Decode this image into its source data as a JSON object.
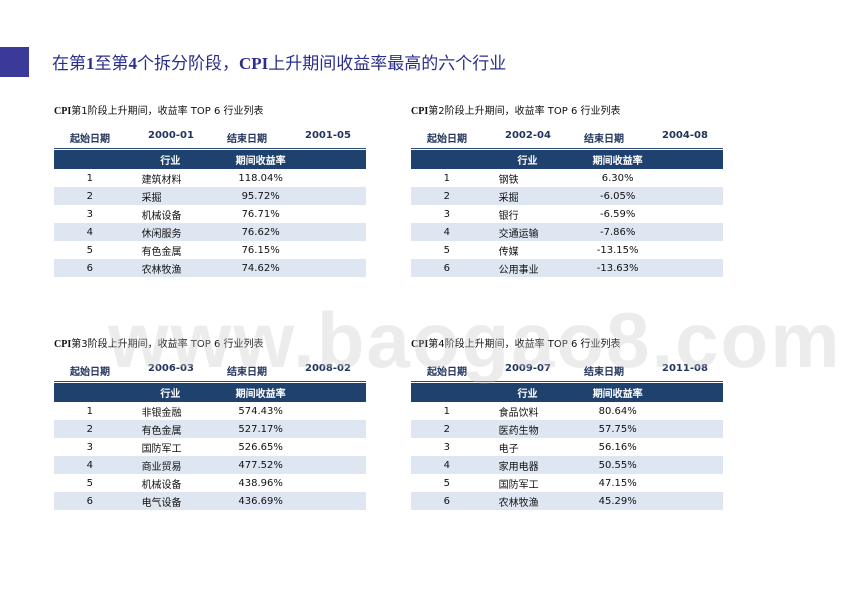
{
  "title": {
    "prefix": "在第",
    "num1": "1",
    "mid": "至第",
    "num2": "4",
    "mid2": "个拆分阶段，",
    "cpi": "CPI",
    "suffix": "上升期间收益率最高的六个行业"
  },
  "watermark": "www.baogao8.com",
  "panels": [
    {
      "title_cpi": "CPI",
      "title_rest": "第1阶段上升期间，收益率 TOP 6 行业列表",
      "start_label": "起始日期",
      "start_date": "2000-01",
      "end_label": "结束日期",
      "end_date": "2001-05",
      "headers": [
        "",
        "行业",
        "期间收益率",
        ""
      ],
      "rows": [
        {
          "rank": "1",
          "industry": "建筑材料",
          "return": "118.04%"
        },
        {
          "rank": "2",
          "industry": "采掘",
          "return": "95.72%"
        },
        {
          "rank": "3",
          "industry": "机械设备",
          "return": "76.71%"
        },
        {
          "rank": "4",
          "industry": "休闲服务",
          "return": "76.62%"
        },
        {
          "rank": "5",
          "industry": "有色金属",
          "return": "76.15%"
        },
        {
          "rank": "6",
          "industry": "农林牧渔",
          "return": "74.62%"
        }
      ]
    },
    {
      "title_cpi": "CPI",
      "title_rest": "第2阶段上升期间，收益率 TOP 6 行业列表",
      "start_label": "起始日期",
      "start_date": "2002-04",
      "end_label": "结束日期",
      "end_date": "2004-08",
      "headers": [
        "",
        "行业",
        "期间收益率",
        ""
      ],
      "rows": [
        {
          "rank": "1",
          "industry": "钢铁",
          "return": "6.30%"
        },
        {
          "rank": "2",
          "industry": "采掘",
          "return": "-6.05%"
        },
        {
          "rank": "3",
          "industry": "银行",
          "return": "-6.59%"
        },
        {
          "rank": "4",
          "industry": "交通运输",
          "return": "-7.86%"
        },
        {
          "rank": "5",
          "industry": "传媒",
          "return": "-13.15%"
        },
        {
          "rank": "6",
          "industry": "公用事业",
          "return": "-13.63%"
        }
      ]
    },
    {
      "title_cpi": "CPI",
      "title_rest": "第3阶段上升期间，收益率 TOP 6 行业列表",
      "start_label": "起始日期",
      "start_date": "2006-03",
      "end_label": "结束日期",
      "end_date": "2008-02",
      "headers": [
        "",
        "行业",
        "期间收益率",
        ""
      ],
      "rows": [
        {
          "rank": "1",
          "industry": "非银金融",
          "return": "574.43%"
        },
        {
          "rank": "2",
          "industry": "有色金属",
          "return": "527.17%"
        },
        {
          "rank": "3",
          "industry": "国防军工",
          "return": "526.65%"
        },
        {
          "rank": "4",
          "industry": "商业贸易",
          "return": "477.52%"
        },
        {
          "rank": "5",
          "industry": "机械设备",
          "return": "438.96%"
        },
        {
          "rank": "6",
          "industry": "电气设备",
          "return": "436.69%"
        }
      ]
    },
    {
      "title_cpi": "CPI",
      "title_rest": "第4阶段上升期间，收益率 TOP 6 行业列表",
      "start_label": "起始日期",
      "start_date": "2009-07",
      "end_label": "结束日期",
      "end_date": "2011-08",
      "headers": [
        "",
        "行业",
        "期间收益率",
        ""
      ],
      "rows": [
        {
          "rank": "1",
          "industry": "食品饮料",
          "return": "80.64%"
        },
        {
          "rank": "2",
          "industry": "医药生物",
          "return": "57.75%"
        },
        {
          "rank": "3",
          "industry": "电子",
          "return": "56.16%"
        },
        {
          "rank": "4",
          "industry": "家用电器",
          "return": "50.55%"
        },
        {
          "rank": "5",
          "industry": "国防军工",
          "return": "47.15%"
        },
        {
          "rank": "6",
          "industry": "农林牧渔",
          "return": "45.29%"
        }
      ]
    }
  ]
}
